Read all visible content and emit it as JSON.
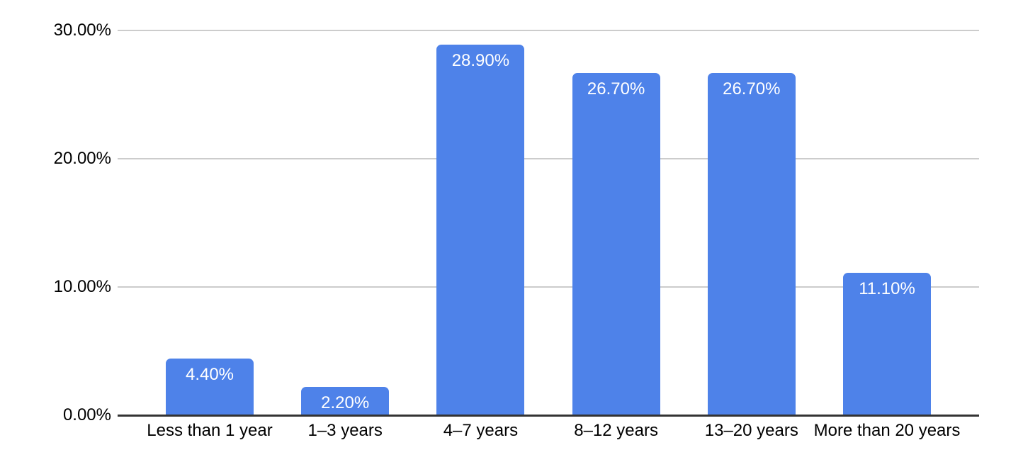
{
  "background_color": "#ffffff",
  "chart_data": {
    "type": "bar",
    "title": "",
    "xlabel": "",
    "ylabel": "",
    "categories": [
      "Less than 1 year",
      "1–3 years",
      "4–7 years",
      "8–12 years",
      "13–20 years",
      "More than 20 years"
    ],
    "values": [
      4.4,
      2.2,
      28.9,
      26.7,
      26.7,
      11.1
    ],
    "bar_labels": [
      "4.40%",
      "2.20%",
      "28.90%",
      "26.70%",
      "26.70%",
      "11.10%"
    ],
    "y_ticks": [
      {
        "value": 0,
        "label": "0.00%"
      },
      {
        "value": 10,
        "label": "10.00%"
      },
      {
        "value": 20,
        "label": "20.00%"
      },
      {
        "value": 30,
        "label": "30.00%"
      }
    ],
    "ylim": [
      0,
      30
    ],
    "grid": true,
    "legend_position": "none",
    "bar_color": "#4e82e9",
    "bar_value_label_color": "#ffffff",
    "axis_text_color": "#000000",
    "gridline_color": "#cccccc",
    "baseline_color": "#333333"
  }
}
